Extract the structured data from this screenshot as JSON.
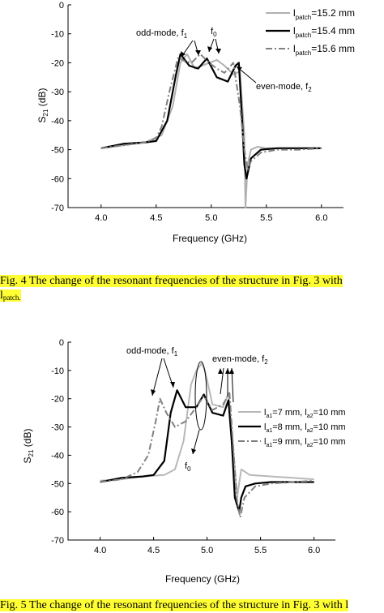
{
  "chart_data": [
    {
      "type": "line",
      "xlabel": "Frequency (GHz)",
      "ylabel": "S21 (dB)",
      "xlim": [
        3.7,
        6.2
      ],
      "ylim": [
        -70,
        0
      ],
      "xticks": [
        "4.0",
        "4.5",
        "5.0",
        "5.5",
        "6.0"
      ],
      "yticks": [
        "0",
        "-10",
        "-20",
        "-30",
        "-40",
        "-50",
        "-60",
        "-70"
      ],
      "legend_position": "top-right",
      "legend": [
        {
          "label": "l",
          "sub": "patch",
          "suffix": "=15.2 mm"
        },
        {
          "label": "l",
          "sub": "patch",
          "suffix": "=15.4 mm"
        },
        {
          "label": "l",
          "sub": "patch",
          "suffix": "=15.6 mm"
        }
      ],
      "annotations": [
        {
          "text": "odd-mode, f",
          "sub": "1"
        },
        {
          "text": "f",
          "sub": "0"
        },
        {
          "text": "even-mode, f",
          "sub": "2"
        }
      ],
      "series": [
        {
          "name": "lpatch=15.2 mm",
          "color": "#b0b0b0",
          "dash": "solid",
          "x": [
            4.0,
            4.2,
            4.4,
            4.55,
            4.65,
            4.72,
            4.78,
            4.85,
            4.95,
            5.05,
            5.12,
            5.2,
            5.26,
            5.3,
            5.31,
            5.33,
            5.36,
            5.42,
            5.5,
            5.7,
            6.0
          ],
          "y": [
            -49.5,
            -48.5,
            -47.5,
            -45,
            -35,
            -20,
            -17,
            -22,
            -20.5,
            -19,
            -21,
            -24,
            -23,
            -45,
            -70,
            -55,
            -50,
            -49,
            -49.5,
            -49.5,
            -49.5
          ]
        },
        {
          "name": "lpatch=15.4 mm",
          "color": "#000000",
          "dash": "solid",
          "x": [
            4.0,
            4.2,
            4.4,
            4.5,
            4.6,
            4.68,
            4.72,
            4.8,
            4.88,
            4.96,
            5.05,
            5.15,
            5.22,
            5.25,
            5.28,
            5.3,
            5.32,
            5.36,
            5.45,
            5.6,
            5.8,
            6.0
          ],
          "y": [
            -49.5,
            -48,
            -47.5,
            -47,
            -40,
            -24,
            -17,
            -21,
            -22,
            -18.5,
            -25,
            -26.5,
            -21,
            -20,
            -40,
            -55,
            -60,
            -53,
            -50,
            -49.5,
            -49.5,
            -49.5
          ]
        },
        {
          "name": "lpatch=15.6 mm",
          "color": "#808080",
          "dash": "dashdot",
          "x": [
            4.0,
            4.2,
            4.4,
            4.5,
            4.55,
            4.62,
            4.7,
            4.76,
            4.82,
            4.9,
            4.98,
            5.05,
            5.12,
            5.2,
            5.26,
            5.3,
            5.33,
            5.36,
            5.45,
            5.6,
            5.8,
            6.0
          ],
          "y": [
            -49.5,
            -48.5,
            -47.5,
            -46,
            -42,
            -30,
            -18,
            -19.5,
            -20,
            -17,
            -20,
            -22,
            -23.5,
            -20,
            -35,
            -50,
            -57,
            -54,
            -51,
            -50,
            -50,
            -49.5
          ]
        }
      ]
    },
    {
      "type": "line",
      "xlabel": "Frequency (GHz)",
      "ylabel": "S21 (dB)",
      "xlim": [
        3.7,
        6.2
      ],
      "ylim": [
        -70,
        0
      ],
      "xticks": [
        "4.0",
        "4.5",
        "5.0",
        "5.5",
        "6.0"
      ],
      "yticks": [
        "0",
        "-10",
        "-20",
        "-30",
        "-40",
        "-50",
        "-60",
        "-70"
      ],
      "legend_position": "right",
      "legend": [
        {
          "label": "l",
          "sub": "a1",
          "mid": "=7 mm, l",
          "sub2": "a2",
          "suffix": "=10 mm"
        },
        {
          "label": "l",
          "sub": "a1",
          "mid": "=8 mm, l",
          "sub2": "a2",
          "suffix": "=10 mm"
        },
        {
          "label": "l",
          "sub": "a1",
          "mid": "=9 mm, l",
          "sub2": "a2",
          "suffix": "=10 mm"
        }
      ],
      "annotations": [
        {
          "text": "odd-mode, f",
          "sub": "1"
        },
        {
          "text": "even-mode, f",
          "sub": "2"
        },
        {
          "text": "f",
          "sub": "0"
        }
      ],
      "series": [
        {
          "name": "la1=7 mm, la2=10 mm",
          "color": "#b8b8b8",
          "dash": "solid",
          "x": [
            4.0,
            4.2,
            4.4,
            4.6,
            4.7,
            4.78,
            4.85,
            4.9,
            4.95,
            4.98,
            5.05,
            5.15,
            5.2,
            5.24,
            5.28,
            5.32,
            5.4,
            5.6,
            5.8,
            6.0
          ],
          "y": [
            -49,
            -48.5,
            -47.5,
            -47,
            -45,
            -35,
            -15,
            -10,
            -7.5,
            -10,
            -22,
            -23,
            -18,
            -35,
            -55,
            -45,
            -47,
            -47.5,
            -48,
            -48.5
          ]
        },
        {
          "name": "la1=8 mm, la2=10 mm",
          "color": "#000000",
          "dash": "solid",
          "x": [
            4.0,
            4.2,
            4.4,
            4.5,
            4.6,
            4.66,
            4.72,
            4.8,
            4.9,
            4.97,
            5.05,
            5.15,
            5.2,
            5.23,
            5.26,
            5.3,
            5.32,
            5.36,
            5.45,
            5.6,
            5.8,
            6.0
          ],
          "y": [
            -49.5,
            -48,
            -47.5,
            -47,
            -42,
            -25,
            -17,
            -23,
            -23,
            -18.5,
            -25,
            -26,
            -20.5,
            -35,
            -55,
            -60,
            -55,
            -51,
            -50,
            -49.5,
            -49.5,
            -49.5
          ]
        },
        {
          "name": "la1=9 mm, la2=10 mm",
          "color": "#808080",
          "dash": "dashdot",
          "x": [
            4.0,
            4.2,
            4.35,
            4.45,
            4.52,
            4.56,
            4.62,
            4.7,
            4.8,
            4.9,
            4.97,
            5.05,
            5.15,
            5.21,
            5.25,
            5.28,
            5.31,
            5.35,
            5.45,
            5.6,
            5.8,
            6.0
          ],
          "y": [
            -49.5,
            -48.5,
            -46,
            -40,
            -28,
            -20,
            -25,
            -30,
            -28,
            -23,
            -19,
            -24,
            -22,
            -18,
            -40,
            -56,
            -62,
            -55,
            -51,
            -50,
            -49.5,
            -49
          ]
        }
      ]
    }
  ],
  "captions": {
    "fig4_line1": "Fig. 4 The change of the resonant frequencies of the structure in Fig. 3 with",
    "fig4_line2_main": "l",
    "fig4_line2_sub": "patch.",
    "fig5_line1": "Fig. 5 The change of the resonant frequencies of the structure in Fig. 3 with l"
  }
}
